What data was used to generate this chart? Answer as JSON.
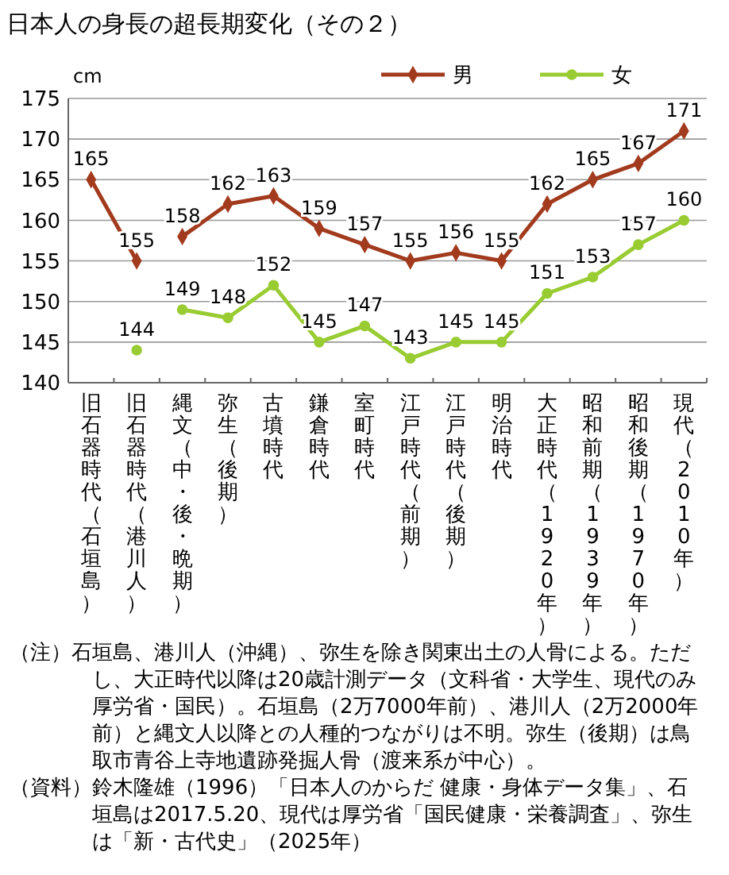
{
  "chart_data": {
    "type": "line",
    "title": "日本人の身長の超長期変化（その２）",
    "ylabel": "cm",
    "categories": [
      "旧石器時代（石垣島）",
      "旧石器時代（港川人）",
      "縄文（中・後・晩期）",
      "弥生（後期）",
      "古墳時代",
      "鎌倉時代",
      "室町時代",
      "江戸時代（前期）",
      "江戸時代（後期）",
      "明治時代",
      "大正時代（1920年）",
      "昭和前期（1939年）",
      "昭和後期（1970年）",
      "現代（2010年）"
    ],
    "series": [
      {
        "name": "男",
        "color": "#a23b1e",
        "marker": "diamond",
        "values": [
          null,
          null,
          158,
          162,
          163,
          159,
          157,
          155,
          156,
          155,
          162,
          165,
          167,
          171
        ]
      },
      {
        "color": "#a23b1e",
        "marker": "diamond",
        "values": [
          165,
          155,
          null,
          null,
          null,
          null,
          null,
          null,
          null,
          null,
          null,
          null,
          null,
          null
        ]
      },
      {
        "name": "女",
        "color": "#99cc33",
        "marker": "circle",
        "values": [
          null,
          null,
          149,
          148,
          152,
          145,
          147,
          143,
          145,
          145,
          151,
          153,
          157,
          160
        ]
      },
      {
        "color": "#99cc33",
        "marker": "circle",
        "values": [
          null,
          144,
          null,
          null,
          null,
          null,
          null,
          null,
          null,
          null,
          null,
          null,
          null,
          null
        ]
      }
    ],
    "ylim": [
      140,
      175
    ],
    "yticks": [
      140,
      145,
      150,
      155,
      160,
      165,
      170,
      175
    ],
    "grid": "y",
    "legend": "top right",
    "data_labels": true,
    "line_style": "solid",
    "annotations": [
      "（注）石垣島、港川人（沖縄）、弥生を除き関東出土の人骨による。ただし、大正時代以降は20歳計測データ（文科省・大学生、現代のみ厚労省・国民）。石垣島（2万7000年前）、港川人（2万2000年前）と縄文人以降との人種的つながりは不明。弥生（後期）は鳥取市青谷上寺地遺跡発掘人骨（渡来系が中心）。",
      "（資料）鈴木隆雄（1996）「日本人のからだ 健康・身体データ集」、石垣島は2017.5.20、現代は厚労省「国民健康・栄養調査」、弥生は「新・古代史」（2025年）"
    ]
  }
}
